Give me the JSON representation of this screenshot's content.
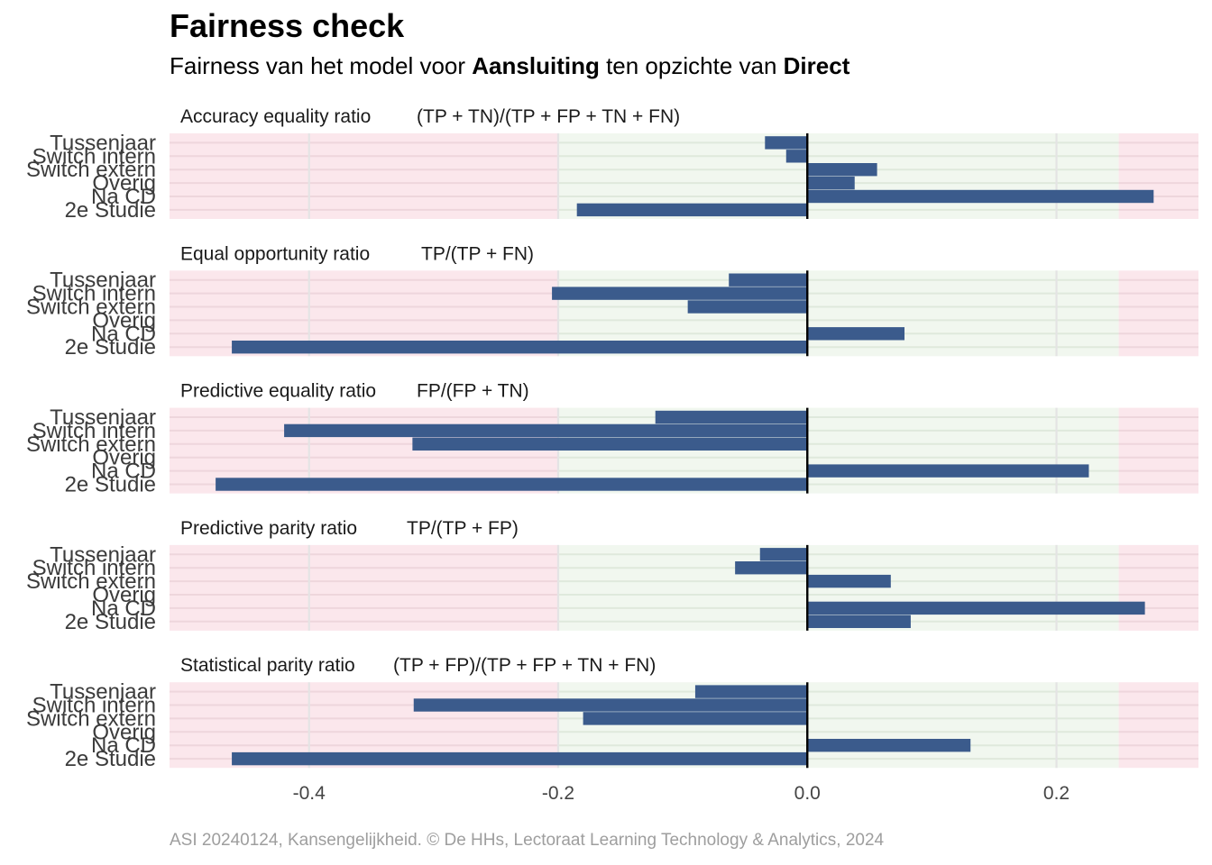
{
  "header": {
    "title": "Fairness check",
    "subtitle_pre": "Fairness van het model voor ",
    "subtitle_group": "Aansluiting",
    "subtitle_mid": " ten opzichte van ",
    "subtitle_ref": "Direct"
  },
  "caption": "ASI 20240124, Kansengelijkheid. © De HHs, Lectoraat Learning Technology & Analytics, 2024",
  "colors": {
    "bar": "#3b5b8c",
    "fair_zone": "#f1f7ef",
    "unfair_zone": "#fbe7ec",
    "fair_grid": "#dfe9dc",
    "unfair_grid": "#eed6dc",
    "zero_line": "#000000"
  },
  "chart_data": {
    "type": "bar",
    "orientation": "horizontal",
    "categories": [
      "Tussenjaar",
      "Switch intern",
      "Switch extern",
      "Overig",
      "Na CD",
      "2e Studie"
    ],
    "xlim": [
      -0.512,
      0.314
    ],
    "x_ticks": [
      "-0.4",
      "-0.2",
      "0.0",
      "0.2"
    ],
    "fair_range": [
      -0.2,
      0.25
    ],
    "panels": [
      {
        "metric": "Accuracy equality ratio",
        "formula": "(TP + TN)/(TP + FP + TN + FN)",
        "values": [
          -0.034,
          -0.017,
          0.056,
          0.038,
          0.278,
          -0.185
        ]
      },
      {
        "metric": "Equal opportunity ratio",
        "formula": "TP/(TP + FN)",
        "values": [
          -0.063,
          -0.205,
          -0.096,
          0.0,
          0.078,
          -0.462
        ]
      },
      {
        "metric": "Predictive equality ratio",
        "formula": "FP/(FP + TN)",
        "values": [
          -0.122,
          -0.42,
          -0.317,
          0.0,
          0.226,
          -0.475
        ]
      },
      {
        "metric": "Predictive parity ratio",
        "formula": "TP/(TP + FP)",
        "values": [
          -0.038,
          -0.058,
          0.067,
          0.0,
          0.271,
          0.083
        ]
      },
      {
        "metric": "Statistical parity ratio",
        "formula": "(TP + FP)/(TP + FP + TN + FN)",
        "values": [
          -0.09,
          -0.316,
          -0.18,
          0.0,
          0.131,
          -0.462
        ]
      }
    ]
  }
}
